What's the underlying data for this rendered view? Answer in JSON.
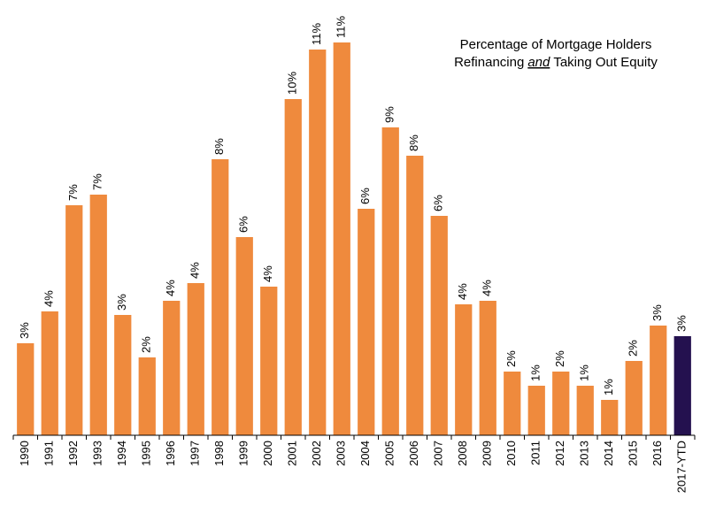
{
  "chart_data": {
    "type": "bar",
    "title": [
      "Percentage of Mortgage Holders",
      "Refinancing",
      "and",
      "Taking Out Equity"
    ],
    "categories": [
      "1990",
      "1991",
      "1992",
      "1993",
      "1994",
      "1995",
      "1996",
      "1997",
      "1998",
      "1999",
      "2000",
      "2001",
      "2002",
      "2003",
      "2004",
      "2005",
      "2006",
      "2007",
      "2008",
      "2009",
      "2010",
      "2011",
      "2012",
      "2013",
      "2014",
      "2015",
      "2016",
      "2017-YTD"
    ],
    "values": [
      2.6,
      3.5,
      6.5,
      6.8,
      3.4,
      2.2,
      3.8,
      4.3,
      7.8,
      5.6,
      4.2,
      9.5,
      10.9,
      11.1,
      6.4,
      8.7,
      7.9,
      6.2,
      3.7,
      3.8,
      1.8,
      1.4,
      1.8,
      1.4,
      1.0,
      2.1,
      3.1,
      2.8
    ],
    "value_labels": [
      "3%",
      "4%",
      "7%",
      "7%",
      "3%",
      "2%",
      "4%",
      "4%",
      "8%",
      "6%",
      "4%",
      "10%",
      "11%",
      "11%",
      "6%",
      "9%",
      "8%",
      "6%",
      "4%",
      "4%",
      "2%",
      "1%",
      "2%",
      "1%",
      "1%",
      "2%",
      "3%",
      "3%"
    ],
    "colors": [
      "#ef8a3d",
      "#ef8a3d",
      "#ef8a3d",
      "#ef8a3d",
      "#ef8a3d",
      "#ef8a3d",
      "#ef8a3d",
      "#ef8a3d",
      "#ef8a3d",
      "#ef8a3d",
      "#ef8a3d",
      "#ef8a3d",
      "#ef8a3d",
      "#ef8a3d",
      "#ef8a3d",
      "#ef8a3d",
      "#ef8a3d",
      "#ef8a3d",
      "#ef8a3d",
      "#ef8a3d",
      "#ef8a3d",
      "#ef8a3d",
      "#ef8a3d",
      "#ef8a3d",
      "#ef8a3d",
      "#ef8a3d",
      "#ef8a3d",
      "#24114f"
    ]
  }
}
